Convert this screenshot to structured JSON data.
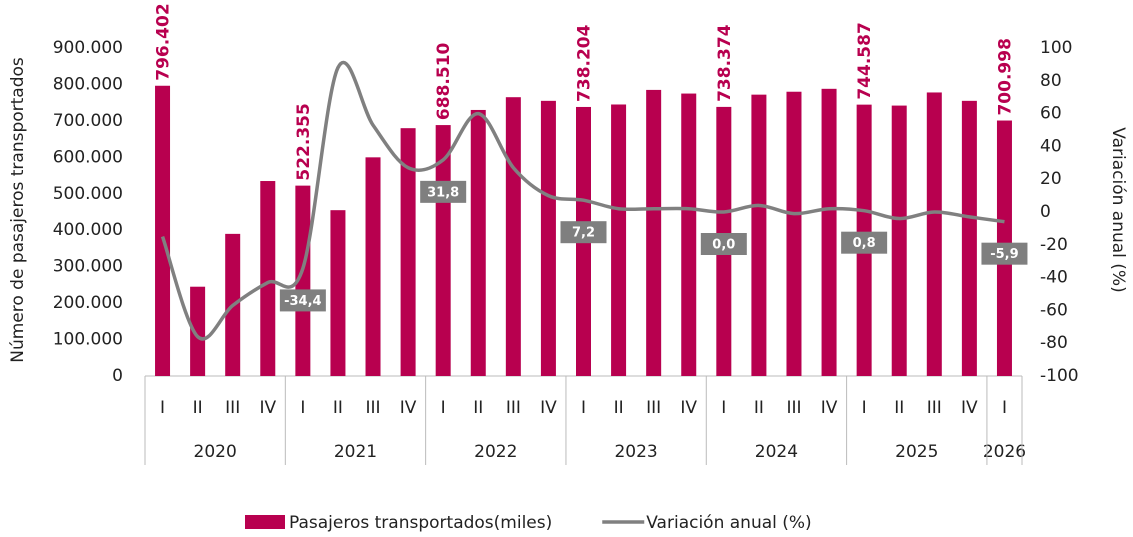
{
  "chart_data": {
    "type": "bar_line",
    "y_label": "Número de pasajeros transportados",
    "y2_label": "Variación anual (%)",
    "category_groups": [
      {
        "label": "2020",
        "categories": [
          "I",
          "II",
          "III",
          "IV"
        ]
      },
      {
        "label": "2021",
        "categories": [
          "I",
          "II",
          "III",
          "IV"
        ]
      },
      {
        "label": "2022",
        "categories": [
          "I",
          "II",
          "III",
          "IV"
        ]
      },
      {
        "label": "2023",
        "categories": [
          "I",
          "II",
          "III",
          "IV"
        ]
      },
      {
        "label": "2024",
        "categories": [
          "I",
          "II",
          "III",
          "IV"
        ]
      },
      {
        "label": "2025",
        "categories": [
          "I",
          "II",
          "III",
          "IV"
        ]
      },
      {
        "label": "2026",
        "categories": [
          "I"
        ]
      }
    ],
    "series": [
      {
        "name": "Pasajeros transportados(miles)",
        "type": "bar",
        "color": "#b8004f",
        "values": [
          796402,
          245000,
          390000,
          535000,
          522355,
          455000,
          600000,
          680000,
          688510,
          730000,
          765000,
          755000,
          738204,
          745000,
          785000,
          775000,
          738374,
          772000,
          780000,
          788000,
          744587,
          742000,
          778000,
          755000,
          700998
        ],
        "value_labels": [
          "796.402",
          null,
          null,
          null,
          "522.355",
          null,
          null,
          null,
          "688.510",
          null,
          null,
          null,
          "738.204",
          null,
          null,
          null,
          "738.374",
          null,
          null,
          null,
          "744.587",
          null,
          null,
          null,
          "700.998"
        ]
      },
      {
        "name": "Variación anual (%)",
        "type": "line",
        "axis": "y2",
        "color": "#808080",
        "values": [
          -15,
          -76,
          -57,
          -43,
          -34.4,
          88,
          53,
          27,
          31.8,
          60,
          27,
          10,
          7.2,
          2,
          2,
          2,
          0.0,
          4,
          -1,
          2,
          0.8,
          -4,
          0,
          -3,
          -5.9
        ],
        "value_labels": [
          null,
          null,
          null,
          null,
          "-34,4",
          null,
          null,
          null,
          "31,8",
          null,
          null,
          null,
          "7,2",
          null,
          null,
          null,
          "0,0",
          null,
          null,
          null,
          "0,8",
          null,
          null,
          null,
          "-5,9"
        ]
      }
    ],
    "ylim": [
      0,
      900000
    ],
    "yticks": [
      0,
      {
        "value": 100000,
        "label": "100.000"
      },
      {
        "value": 200000,
        "label": "200.000"
      },
      {
        "value": 300000,
        "label": "300.000"
      },
      {
        "value": 400000,
        "label": "400.000"
      },
      {
        "value": 500000,
        "label": "500.000"
      },
      {
        "value": 600000,
        "label": "600.000"
      },
      {
        "value": 700000,
        "label": "700.000"
      },
      {
        "value": 800000,
        "label": "800.000"
      },
      {
        "value": 900000,
        "label": "900.000"
      }
    ],
    "y2lim": [
      -100,
      100
    ],
    "y2ticks": [
      -100,
      -80,
      -60,
      -40,
      -20,
      0,
      20,
      40,
      60,
      80,
      100
    ],
    "legend": "bottom"
  }
}
